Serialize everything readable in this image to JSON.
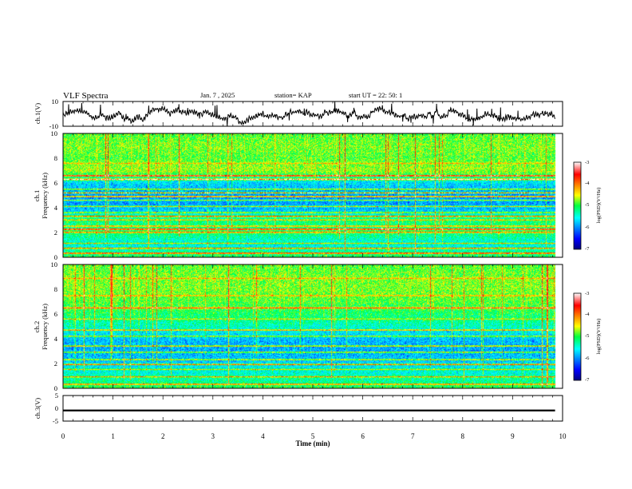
{
  "header": {
    "title": "VLF Spectra",
    "date": "Jan. 7 , 2025",
    "station": "station= KAP",
    "start": "start UT =  22: 50: 1"
  },
  "chart_data": [
    {
      "type": "line",
      "panel": "ch1-waveform",
      "ylabel": "ch.1(V)",
      "ylim": [
        -10,
        10
      ],
      "yticks": [
        "10",
        "-10"
      ],
      "xlim": [
        0,
        10
      ],
      "x_end_of_data": 9.85,
      "envelope_min": [
        -6,
        -4,
        -8,
        -5,
        -7,
        -3,
        -6,
        -8,
        -5,
        -4,
        -7,
        -6,
        -3,
        -5,
        -8,
        -4,
        -6,
        -7,
        -5,
        -3
      ],
      "envelope_max": [
        3,
        6,
        4,
        8,
        5,
        2,
        7,
        3,
        6,
        9,
        4,
        5,
        8,
        3,
        6,
        4,
        7,
        5,
        9,
        6
      ]
    },
    {
      "type": "heatmap",
      "panel": "ch1-spectrogram",
      "ylabel_line1": "ch.1",
      "ylabel_line2": "Frequency (kHz)",
      "ylim": [
        0,
        10
      ],
      "yticks": [
        "0",
        "2",
        "4",
        "6",
        "8",
        "10"
      ],
      "xlim": [
        0,
        10
      ],
      "x_end_of_data": 9.85,
      "base_log_psd_by_khz": [
        -5.0,
        -5.6,
        -5.1,
        -5.2,
        -5.9,
        -6.0,
        -5.7,
        -4.7,
        -4.9,
        -4.8,
        -4.9
      ],
      "bands_khz": [
        {
          "f": 0.3,
          "level": -3.4
        },
        {
          "f": 0.7,
          "level": -3.8
        },
        {
          "f": 1.1,
          "level": -4.3
        },
        {
          "f": 2.0,
          "level": -3.9
        },
        {
          "f": 2.25,
          "level": -3.2
        },
        {
          "f": 2.5,
          "level": -4.0
        },
        {
          "f": 3.0,
          "level": -4.2
        },
        {
          "f": 3.3,
          "level": -3.7
        },
        {
          "f": 3.6,
          "level": -4.4
        },
        {
          "f": 4.1,
          "level": -4.3
        },
        {
          "f": 4.6,
          "level": -4.5
        },
        {
          "f": 4.9,
          "level": -3.5
        },
        {
          "f": 5.2,
          "level": -3.4
        },
        {
          "f": 5.5,
          "level": -4.3
        },
        {
          "f": 6.3,
          "level": -3.1
        },
        {
          "f": 6.6,
          "level": -3.2
        },
        {
          "f": 7.6,
          "level": -4.3
        }
      ],
      "colorbar_label": "log(PSD)(V²/Hz)",
      "colorbar_range": [
        -7,
        -3
      ],
      "colorbar_ticks": [
        "-3",
        "-4",
        "-5",
        "-6",
        "-7"
      ]
    },
    {
      "type": "heatmap",
      "panel": "ch2-spectrogram",
      "ylabel_line1": "ch.2",
      "ylabel_line2": "Frequency (kHz)",
      "ylim": [
        0,
        10
      ],
      "yticks": [
        "0",
        "2",
        "4",
        "6",
        "8",
        "10"
      ],
      "xlim": [
        0,
        10
      ],
      "x_end_of_data": 9.85,
      "base_log_psd_by_khz": [
        -5.0,
        -5.4,
        -5.7,
        -5.9,
        -5.8,
        -5.4,
        -5.1,
        -4.9,
        -4.8,
        -4.8,
        -4.9
      ],
      "bands_khz": [
        {
          "f": 0.3,
          "level": -3.8
        },
        {
          "f": 0.9,
          "level": -4.0
        },
        {
          "f": 1.5,
          "level": -4.4
        },
        {
          "f": 1.9,
          "level": -3.6
        },
        {
          "f": 2.3,
          "level": -4.2
        },
        {
          "f": 2.9,
          "level": -4.3
        },
        {
          "f": 3.4,
          "level": -4.0
        },
        {
          "f": 4.2,
          "level": -4.4
        },
        {
          "f": 4.7,
          "level": -3.9
        },
        {
          "f": 5.6,
          "level": -4.4
        },
        {
          "f": 6.5,
          "level": -3.6
        },
        {
          "f": 7.5,
          "level": -4.1
        },
        {
          "f": 8.9,
          "level": -4.2
        }
      ],
      "colorbar_label": "log(PSD)(V²/Hz)",
      "colorbar_range": [
        -7,
        -3
      ],
      "colorbar_ticks": [
        "-3",
        "-4",
        "-5",
        "-6",
        "-7"
      ]
    },
    {
      "type": "line",
      "panel": "ch3-waveform",
      "ylabel": "ch.3(V)",
      "ylim": [
        -5,
        5
      ],
      "yticks": [
        "5",
        "0",
        "-5"
      ],
      "xlim": [
        0,
        10
      ],
      "x_end_of_data": 9.85,
      "level_band": [
        -1.2,
        -0.5
      ]
    }
  ],
  "xaxis": {
    "label": "Time (min)",
    "ticks": [
      "0",
      "1",
      "2",
      "3",
      "4",
      "5",
      "6",
      "7",
      "8",
      "9",
      "10"
    ]
  }
}
